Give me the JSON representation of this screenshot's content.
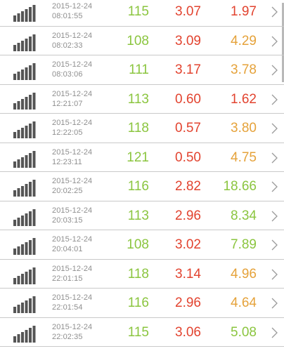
{
  "colors": {
    "green": "#8bc53f",
    "red": "#e2432f",
    "orange": "#e5a23a",
    "gray_text": "#8f8f8f",
    "signal": "#555555"
  },
  "icons": {
    "signal": "signal-bars-icon",
    "chevron": "chevron-right-icon"
  },
  "rows": [
    {
      "date": "2015-12-24",
      "time": "08:01:55",
      "v1": "115",
      "v2": "3.07",
      "v3": "1.97",
      "v1_color": "#8bc53f",
      "v2_color": "#e2432f",
      "v3_color": "#e2432f"
    },
    {
      "date": "2015-12-24",
      "time": "08:02:33",
      "v1": "108",
      "v2": "3.09",
      "v3": "4.29",
      "v1_color": "#8bc53f",
      "v2_color": "#e2432f",
      "v3_color": "#e5a23a"
    },
    {
      "date": "2015-12-24",
      "time": "08:03:06",
      "v1": "111",
      "v2": "3.17",
      "v3": "3.78",
      "v1_color": "#8bc53f",
      "v2_color": "#e2432f",
      "v3_color": "#e5a23a"
    },
    {
      "date": "2015-12-24",
      "time": "12:21:07",
      "v1": "113",
      "v2": "0.60",
      "v3": "1.62",
      "v1_color": "#8bc53f",
      "v2_color": "#e2432f",
      "v3_color": "#e2432f"
    },
    {
      "date": "2015-12-24",
      "time": "12:22:05",
      "v1": "118",
      "v2": "0.57",
      "v3": "3.80",
      "v1_color": "#8bc53f",
      "v2_color": "#e2432f",
      "v3_color": "#e5a23a"
    },
    {
      "date": "2015-12-24",
      "time": "12:23:11",
      "v1": "121",
      "v2": "0.50",
      "v3": "4.75",
      "v1_color": "#8bc53f",
      "v2_color": "#e2432f",
      "v3_color": "#e5a23a"
    },
    {
      "date": "2015-12-24",
      "time": "20:02:25",
      "v1": "116",
      "v2": "2.82",
      "v3": "18.66",
      "v1_color": "#8bc53f",
      "v2_color": "#e2432f",
      "v3_color": "#8bc53f"
    },
    {
      "date": "2015-12-24",
      "time": "20:03:15",
      "v1": "113",
      "v2": "2.96",
      "v3": "8.34",
      "v1_color": "#8bc53f",
      "v2_color": "#e2432f",
      "v3_color": "#8bc53f"
    },
    {
      "date": "2015-12-24",
      "time": "20:04:01",
      "v1": "108",
      "v2": "3.02",
      "v3": "7.89",
      "v1_color": "#8bc53f",
      "v2_color": "#e2432f",
      "v3_color": "#8bc53f"
    },
    {
      "date": "2015-12-24",
      "time": "22:01:15",
      "v1": "118",
      "v2": "3.14",
      "v3": "4.96",
      "v1_color": "#8bc53f",
      "v2_color": "#e2432f",
      "v3_color": "#e5a23a"
    },
    {
      "date": "2015-12-24",
      "time": "22:01:54",
      "v1": "116",
      "v2": "2.96",
      "v3": "4.64",
      "v1_color": "#8bc53f",
      "v2_color": "#e2432f",
      "v3_color": "#e5a23a"
    },
    {
      "date": "2015-12-24",
      "time": "22:02:35",
      "v1": "115",
      "v2": "3.06",
      "v3": "5.08",
      "v1_color": "#8bc53f",
      "v2_color": "#e2432f",
      "v3_color": "#8bc53f"
    }
  ]
}
